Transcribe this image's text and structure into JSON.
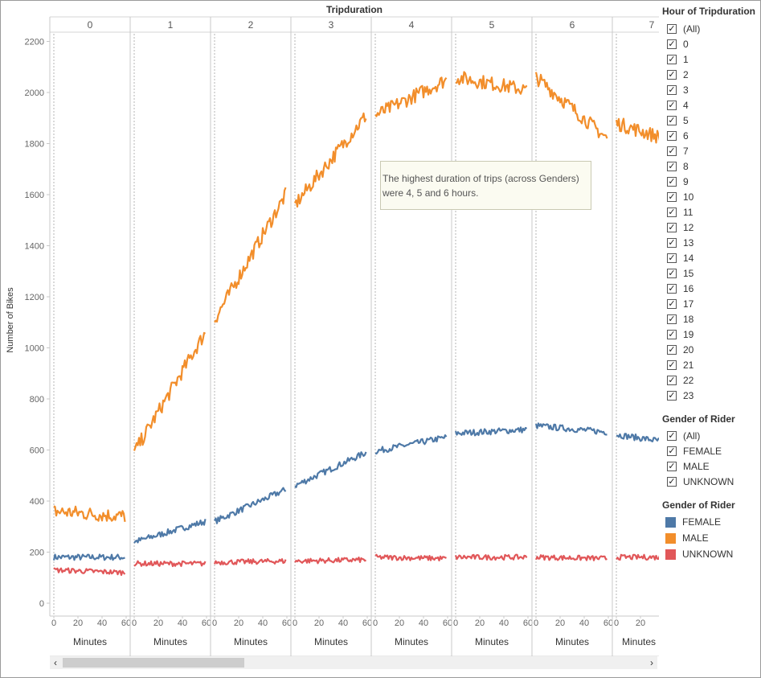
{
  "chart_data": {
    "type": "line",
    "title": "Tripduration",
    "ylabel": "Number of Bikes",
    "xlabel": "Minutes",
    "ylim": [
      -60,
      2290
    ],
    "y_ticks": [
      0,
      200,
      400,
      600,
      800,
      1000,
      1200,
      1400,
      1600,
      1800,
      2000,
      2200
    ],
    "x_ticks": [
      0,
      20,
      40,
      60
    ],
    "panels": [
      "0",
      "1",
      "2",
      "3",
      "4",
      "5",
      "6",
      "7"
    ],
    "series": [
      {
        "name": "FEMALE",
        "color": "#4e79a7",
        "start": [
          180,
          240,
          320,
          460,
          595,
          665,
          695,
          660
        ],
        "end": [
          180,
          320,
          445,
          590,
          650,
          680,
          670,
          620
        ],
        "noise": 12
      },
      {
        "name": "MALE",
        "color": "#f28e2b",
        "start": [
          360,
          590,
          1110,
          1560,
          1910,
          2060,
          2060,
          1880
        ],
        "end": [
          340,
          1060,
          1600,
          1910,
          2050,
          2010,
          1820,
          1790
        ],
        "noise": 28
      },
      {
        "name": "UNKNOWN",
        "color": "#e15759",
        "start": [
          130,
          155,
          160,
          165,
          180,
          180,
          180,
          180
        ],
        "end": [
          120,
          155,
          165,
          170,
          175,
          180,
          175,
          180
        ],
        "noise": 10
      }
    ]
  },
  "annotation": {
    "text": "The highest duration of trips (across Genders) were 4, 5 and 6 hours."
  },
  "filters": {
    "hour_title": "Hour of Tripduration",
    "hour_items": [
      "(All)",
      "0",
      "1",
      "2",
      "3",
      "4",
      "5",
      "6",
      "7",
      "8",
      "9",
      "10",
      "11",
      "12",
      "13",
      "14",
      "15",
      "16",
      "17",
      "18",
      "19",
      "20",
      "21",
      "22",
      "23"
    ],
    "gender_title": "Gender of Rider",
    "gender_items": [
      "(All)",
      "FEMALE",
      "MALE",
      "UNKNOWN"
    ]
  },
  "legend": {
    "title": "Gender of Rider",
    "items": [
      {
        "label": "FEMALE",
        "color": "#4e79a7"
      },
      {
        "label": "MALE",
        "color": "#f28e2b"
      },
      {
        "label": "UNKNOWN",
        "color": "#e15759"
      }
    ]
  },
  "scrollbar": {
    "left_arrow": "‹",
    "right_arrow": "›"
  }
}
